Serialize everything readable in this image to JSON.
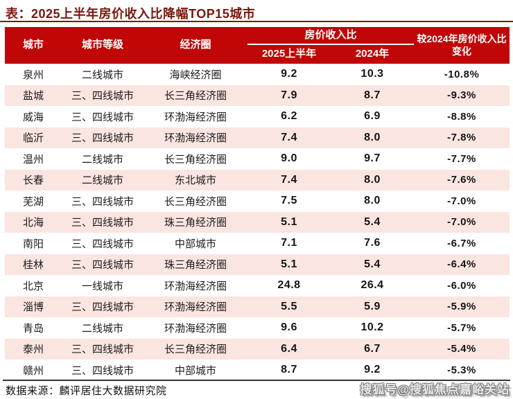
{
  "title": "表：2025上半年房价收入比降幅TOP15城市",
  "table": {
    "columns": {
      "city": "城市",
      "tier": "城市等级",
      "zone": "经济圈",
      "group": "房价收入比",
      "h1_2025": "2025上半年",
      "y2024": "2024年",
      "change": "较2024年房价收入比变化"
    },
    "rows": [
      {
        "city": "泉州",
        "tier": "二线城市",
        "zone": "海峡经济圈",
        "h1_2025": "9.2",
        "y2024": "10.3",
        "change": "-10.8%"
      },
      {
        "city": "盐城",
        "tier": "三、四线城市",
        "zone": "长三角经济圈",
        "h1_2025": "7.9",
        "y2024": "8.7",
        "change": "-9.3%"
      },
      {
        "city": "威海",
        "tier": "三、四线城市",
        "zone": "环渤海经济圈",
        "h1_2025": "6.2",
        "y2024": "6.9",
        "change": "-8.8%"
      },
      {
        "city": "临沂",
        "tier": "三、四线城市",
        "zone": "环渤海经济圈",
        "h1_2025": "7.4",
        "y2024": "8.0",
        "change": "-7.8%"
      },
      {
        "city": "温州",
        "tier": "二线城市",
        "zone": "长三角经济圈",
        "h1_2025": "9.0",
        "y2024": "9.7",
        "change": "-7.7%"
      },
      {
        "city": "长春",
        "tier": "二线城市",
        "zone": "东北城市",
        "h1_2025": "7.4",
        "y2024": "8.0",
        "change": "-7.6%"
      },
      {
        "city": "芜湖",
        "tier": "三、四线城市",
        "zone": "长三角经济圈",
        "h1_2025": "7.5",
        "y2024": "8.0",
        "change": "-7.0%"
      },
      {
        "city": "北海",
        "tier": "三、四线城市",
        "zone": "珠三角经济圈",
        "h1_2025": "5.1",
        "y2024": "5.4",
        "change": "-7.0%"
      },
      {
        "city": "南阳",
        "tier": "三、四线城市",
        "zone": "中部城市",
        "h1_2025": "7.1",
        "y2024": "7.6",
        "change": "-6.7%"
      },
      {
        "city": "桂林",
        "tier": "三、四线城市",
        "zone": "珠三角经济圈",
        "h1_2025": "5.1",
        "y2024": "5.4",
        "change": "-6.4%"
      },
      {
        "city": "北京",
        "tier": "一线城市",
        "zone": "环渤海经济圈",
        "h1_2025": "24.8",
        "y2024": "26.4",
        "change": "-6.0%"
      },
      {
        "city": "淄博",
        "tier": "三、四线城市",
        "zone": "环渤海经济圈",
        "h1_2025": "5.5",
        "y2024": "5.9",
        "change": "-5.9%"
      },
      {
        "city": "青岛",
        "tier": "二线城市",
        "zone": "环渤海经济圈",
        "h1_2025": "9.6",
        "y2024": "10.2",
        "change": "-5.7%"
      },
      {
        "city": "泰州",
        "tier": "三、四线城市",
        "zone": "长三角经济圈",
        "h1_2025": "6.4",
        "y2024": "6.7",
        "change": "-5.4%"
      },
      {
        "city": "赣州",
        "tier": "三、四线城市",
        "zone": "中部城市",
        "h1_2025": "8.7",
        "y2024": "9.2",
        "change": "-5.3%"
      }
    ]
  },
  "footer": {
    "source": "数据来源：麟评居住大数据研究院",
    "watermark": "搜狐号@搜狐焦点嘉峪关站"
  },
  "colors": {
    "band_red": "#c00606",
    "row_alt_pink": "#fbe5e1",
    "title_maroon": "#7b150e"
  }
}
